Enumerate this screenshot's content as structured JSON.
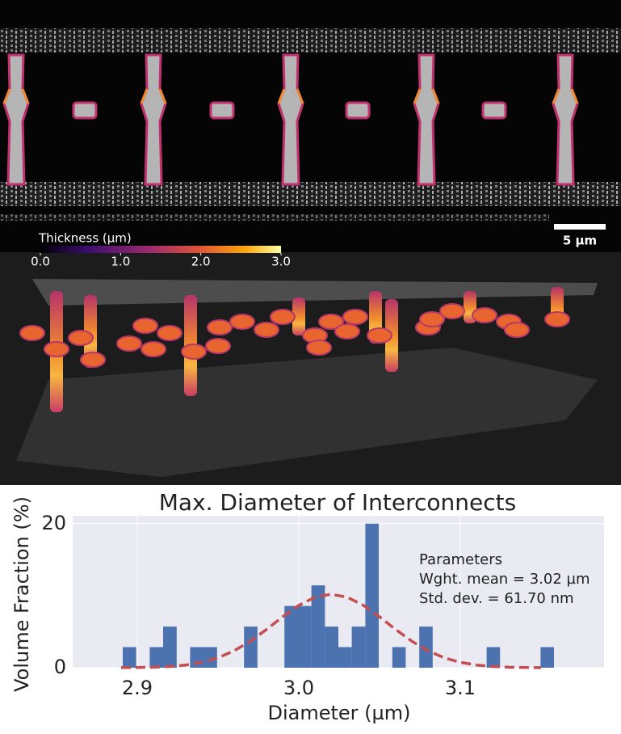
{
  "image_panel": {
    "scale_bar": "5 µm"
  },
  "colorbar": {
    "label": "Thickness (µm)",
    "lim": [
      0,
      3
    ],
    "ticks": [
      {
        "value": 0,
        "label": "0.0"
      },
      {
        "value": 1,
        "label": "1.0"
      },
      {
        "value": 2,
        "label": "2.0"
      },
      {
        "value": 3,
        "label": "3.0"
      }
    ]
  },
  "chart_data": {
    "type": "histogram",
    "title": "Max. Diameter of Interconnects",
    "x_label": "Diameter (µm)",
    "y_label": "Volume Fraction (%)",
    "bins": [
      2.891,
      2.8993,
      2.9077,
      2.916,
      2.9244,
      2.9327,
      2.941,
      2.9494,
      2.9577,
      2.9661,
      2.9744,
      2.9828,
      2.9911,
      2.9995,
      3.0078,
      3.0162,
      3.0245,
      3.0328,
      3.0412,
      3.0495,
      3.0579,
      3.0662,
      3.0746,
      3.0829,
      3.0913,
      3.0996,
      3.1079,
      3.1163,
      3.1246,
      3.133,
      3.1413,
      3.1497,
      3.158
    ],
    "values": [
      2.86,
      0,
      2.86,
      5.71,
      0,
      2.86,
      2.86,
      0,
      0,
      5.71,
      0,
      0,
      8.57,
      8.57,
      11.43,
      5.71,
      2.86,
      5.71,
      20,
      0,
      2.86,
      0,
      5.71,
      0,
      0,
      0,
      0,
      2.86,
      0,
      0,
      0,
      2.86
    ],
    "color": "#4c72b0",
    "fit": {
      "color": "#c44e52",
      "x": [
        2.89,
        2.9,
        2.91,
        2.92,
        2.93,
        2.94,
        2.95,
        2.96,
        2.97,
        2.98,
        2.99,
        3.0,
        3.01,
        3.02,
        3.03,
        3.04,
        3.05,
        3.06,
        3.07,
        3.08,
        3.09,
        3.1,
        3.11,
        3.12,
        3.13,
        3.14,
        3.15
      ],
      "values": [
        0.01,
        0.03,
        0.07,
        0.17,
        0.37,
        0.75,
        1.38,
        2.35,
        3.68,
        5.31,
        7.07,
        8.66,
        9.79,
        10.2,
        9.79,
        8.66,
        7.07,
        5.31,
        3.68,
        2.35,
        1.38,
        0.75,
        0.37,
        0.17,
        0.07,
        0.03,
        0.01
      ]
    },
    "annotations": [
      "Parameters",
      "Wght. mean = 3.02 µm",
      "Std. dev. = 61.70 nm"
    ],
    "xlim": [
      2.86,
      3.189
    ],
    "ylim": [
      0,
      21.1
    ],
    "xticks": [
      2.9,
      {
        "value": 3,
        "label": "3.0"
      },
      3.1
    ],
    "yticks": [
      0,
      20
    ],
    "grid": true,
    "background": "#eaeaf2"
  }
}
